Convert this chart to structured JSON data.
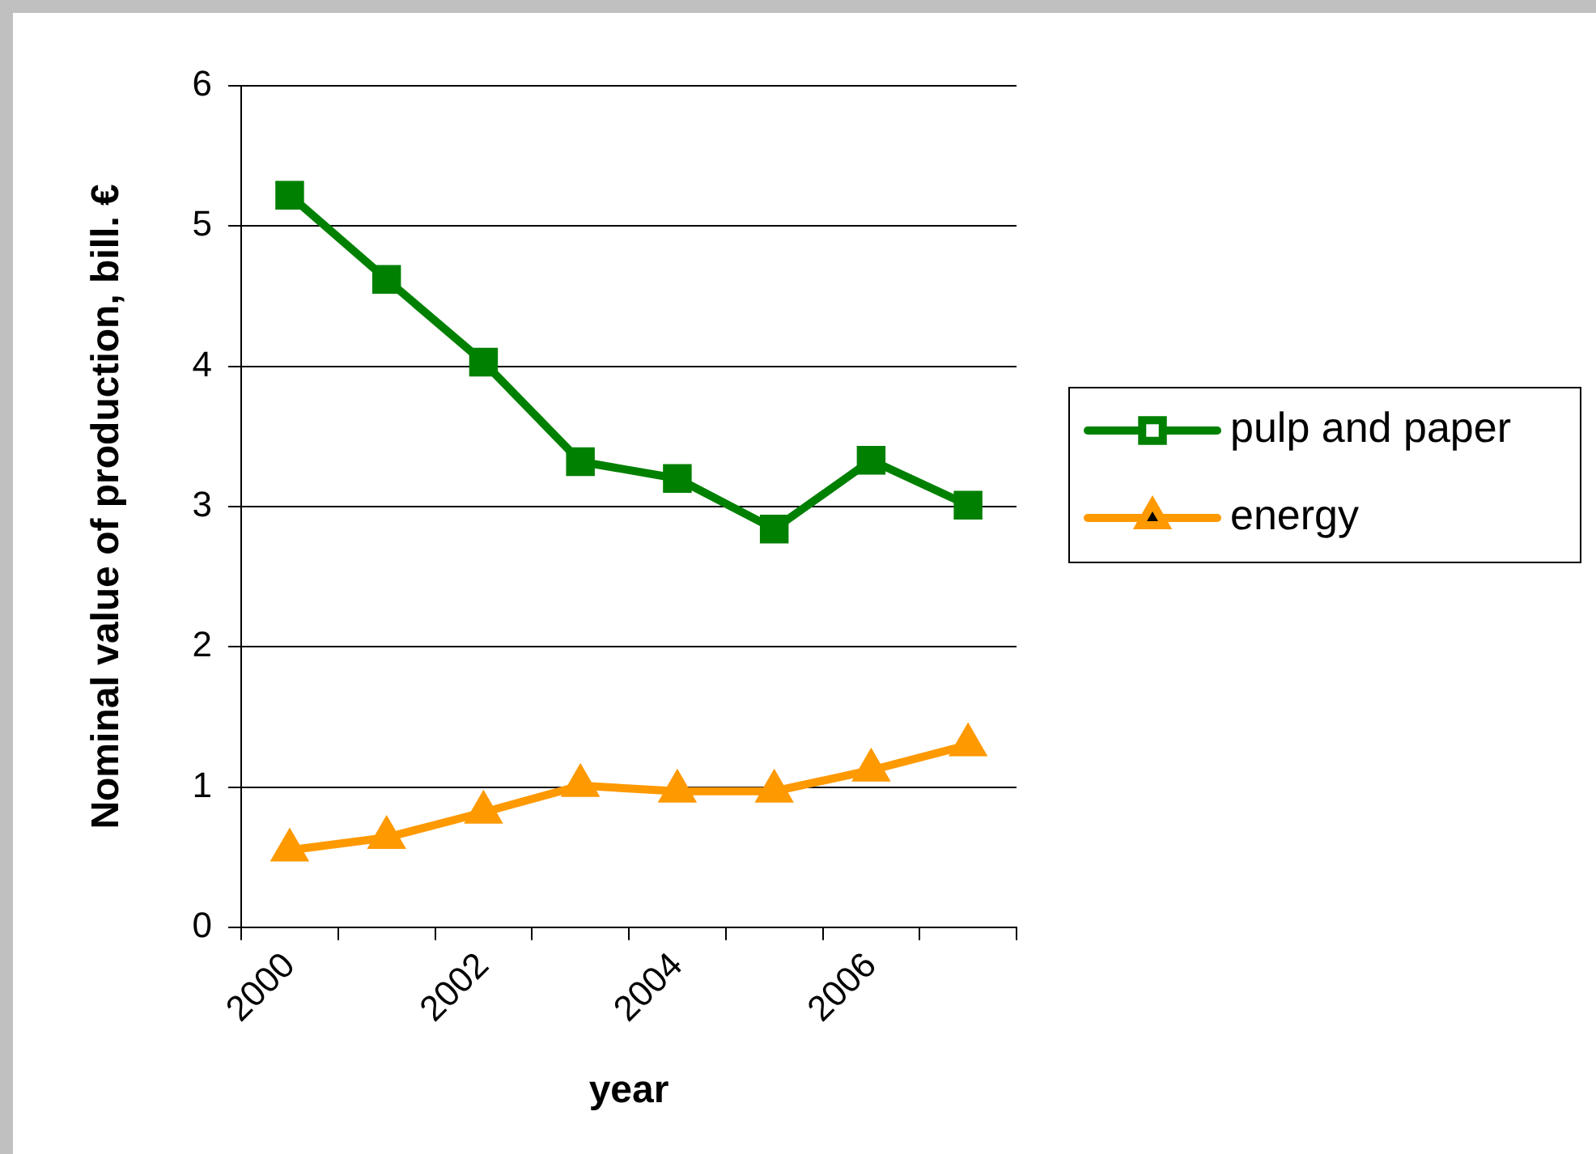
{
  "chart_data": {
    "type": "line",
    "xlabel": "year",
    "ylabel": "Nominal value of production, bill. €",
    "categories": [
      "2000",
      null,
      "2002",
      null,
      "2004",
      null,
      "2006",
      null
    ],
    "series": [
      {
        "name": "pulp and paper",
        "color": "#008000",
        "marker": "square",
        "values": [
          5.22,
          4.62,
          4.03,
          3.32,
          3.2,
          2.84,
          3.33,
          3.01
        ]
      },
      {
        "name": "energy",
        "color": "#ff9900",
        "marker": "triangle",
        "values": [
          0.55,
          0.64,
          0.82,
          1.01,
          0.97,
          0.97,
          1.12,
          1.3
        ]
      }
    ],
    "ylim": [
      0,
      6
    ],
    "yticks": [
      0,
      1,
      2,
      3,
      4,
      5,
      6
    ],
    "grid": "y",
    "legend": "right",
    "line_style": "solid"
  }
}
